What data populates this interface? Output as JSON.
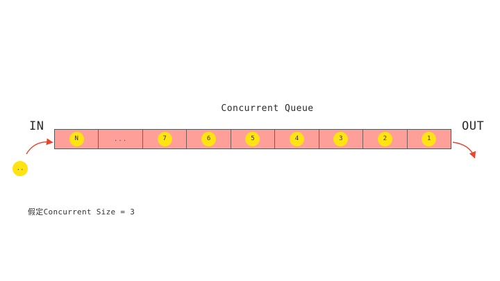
{
  "title": "Concurrent Queue",
  "in_label": "IN",
  "out_label": "OUT",
  "queue": {
    "cells": [
      {
        "label": "N",
        "type": "token"
      },
      {
        "label": "...",
        "type": "ellipsis"
      },
      {
        "label": "7",
        "type": "token"
      },
      {
        "label": "6",
        "type": "token"
      },
      {
        "label": "5",
        "type": "token"
      },
      {
        "label": "4",
        "type": "token"
      },
      {
        "label": "3",
        "type": "token"
      },
      {
        "label": "2",
        "type": "token"
      },
      {
        "label": "1",
        "type": "token"
      }
    ]
  },
  "incoming_token": "..",
  "note": "假定Concurrent Size = 3",
  "colors": {
    "cell_fill": "#ff9f9a",
    "token_fill": "#ffe312",
    "arrow": "#e8452c"
  }
}
